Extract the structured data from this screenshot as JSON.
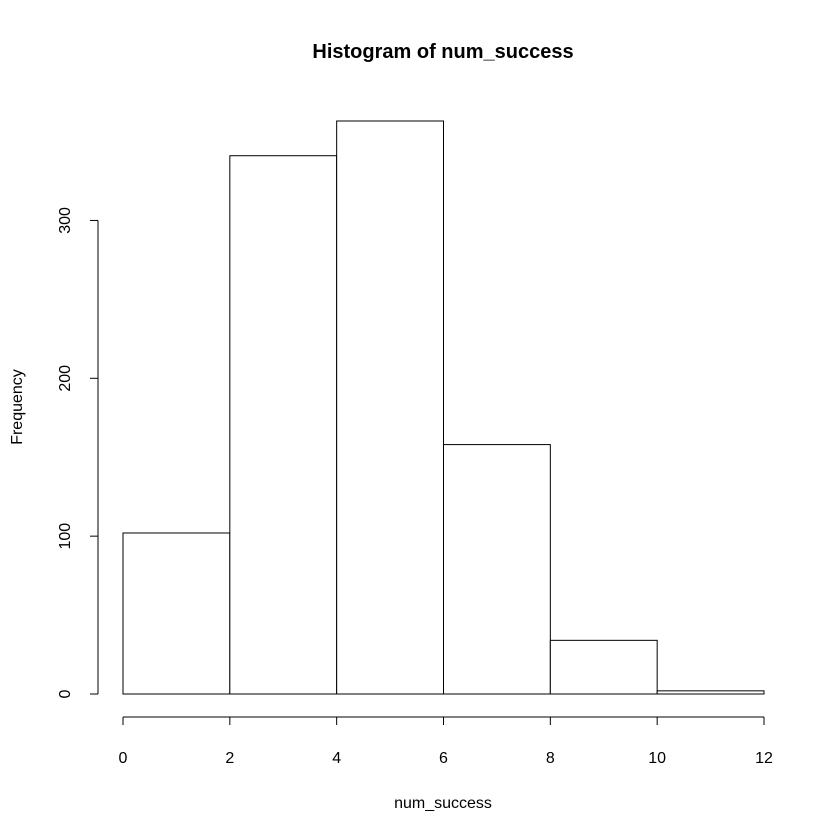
{
  "chart_data": {
    "type": "bar",
    "title": "Histogram of num_success",
    "xlabel": "num_success",
    "ylabel": "Frequency",
    "bins": [
      {
        "x0": 0,
        "x1": 2,
        "count": 102
      },
      {
        "x0": 2,
        "x1": 4,
        "count": 341
      },
      {
        "x0": 4,
        "x1": 6,
        "count": 363
      },
      {
        "x0": 6,
        "x1": 8,
        "count": 158
      },
      {
        "x0": 8,
        "x1": 10,
        "count": 34
      },
      {
        "x0": 10,
        "x1": 12,
        "count": 2
      }
    ],
    "xlim": [
      0,
      12
    ],
    "ylim": [
      0,
      363
    ],
    "xticks": [
      "0",
      "2",
      "4",
      "6",
      "8",
      "10",
      "12"
    ],
    "yticks": [
      "0",
      "100",
      "200",
      "300"
    ],
    "grid": false,
    "bar_fill": "#ffffff",
    "bar_stroke": "#000000"
  }
}
